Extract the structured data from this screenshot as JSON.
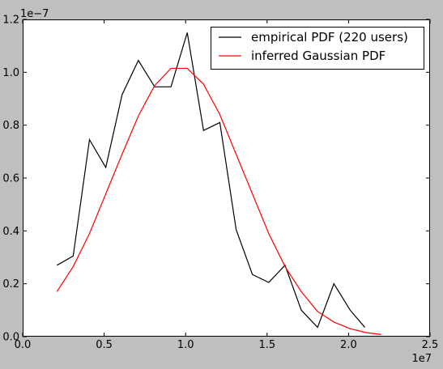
{
  "chart_data": {
    "type": "line",
    "title": "",
    "xlabel": "",
    "ylabel": "",
    "x_offset_label": "1e7",
    "y_offset_label": "1e−7",
    "xlim": [
      0,
      2.5
    ],
    "ylim": [
      0,
      1.2
    ],
    "x_ticks": [
      0.0,
      0.5,
      1.0,
      1.5,
      2.0,
      2.5
    ],
    "x_tick_labels": [
      "0.0",
      "0.5",
      "1.0",
      "1.5",
      "2.0",
      "2.5"
    ],
    "y_ticks": [
      0.0,
      0.2,
      0.4,
      0.6,
      0.8,
      1.0,
      1.2
    ],
    "y_tick_labels": [
      "0.0",
      "0.2",
      "0.4",
      "0.6",
      "0.8",
      "1.0",
      "1.2"
    ],
    "grid": false,
    "legend_position": "top-right",
    "background_color": "#bfbfbf",
    "plot_background_color": "#ffffff",
    "series": [
      {
        "name": "empirical PDF (220 users)",
        "color": "#000000",
        "x": [
          0.21,
          0.31,
          0.41,
          0.51,
          0.61,
          0.71,
          0.81,
          0.91,
          1.01,
          1.11,
          1.21,
          1.31,
          1.41,
          1.51,
          1.61,
          1.71,
          1.81,
          1.91,
          2.01,
          2.1
        ],
        "y": [
          0.27,
          0.305,
          0.745,
          0.64,
          0.915,
          1.045,
          0.945,
          0.945,
          1.15,
          0.78,
          0.81,
          0.405,
          0.235,
          0.205,
          0.27,
          0.1,
          0.035,
          0.2,
          0.1,
          0.035
        ]
      },
      {
        "name": "inferred Gaussian PDF",
        "color": "#ff0000",
        "x": [
          0.21,
          0.31,
          0.41,
          0.51,
          0.61,
          0.71,
          0.81,
          0.91,
          1.01,
          1.11,
          1.21,
          1.31,
          1.41,
          1.51,
          1.61,
          1.71,
          1.81,
          1.91,
          2.01,
          2.11,
          2.2
        ],
        "y": [
          0.17,
          0.265,
          0.39,
          0.54,
          0.69,
          0.835,
          0.95,
          1.015,
          1.015,
          0.955,
          0.84,
          0.69,
          0.54,
          0.39,
          0.265,
          0.17,
          0.095,
          0.055,
          0.03,
          0.015,
          0.008
        ]
      }
    ]
  }
}
